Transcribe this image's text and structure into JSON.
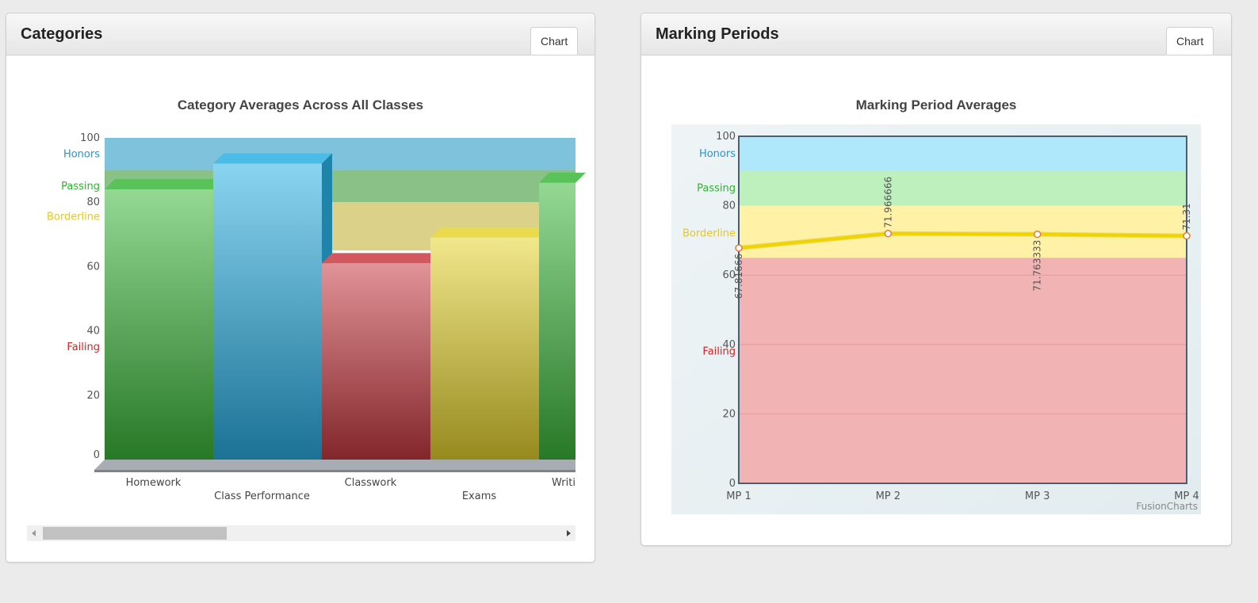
{
  "panels": {
    "categories": {
      "title": "Categories",
      "tab_label": "Chart"
    },
    "marking_periods": {
      "title": "Marking Periods",
      "tab_label": "Chart"
    }
  },
  "chart_data": [
    {
      "type": "bar",
      "title": "Category Averages Across All Classes",
      "categories": [
        "Homework",
        "Class Performance",
        "Classwork",
        "Exams",
        "Writi"
      ],
      "values": [
        84,
        92,
        61,
        69,
        86
      ],
      "colors": [
        "#3cb83c",
        "#2ab0e3",
        "#c83a42",
        "#e6d42e",
        "#3cb83c"
      ],
      "ylim": [
        0,
        100
      ],
      "yticks": [
        0,
        20,
        40,
        60,
        80,
        100
      ],
      "bands": [
        {
          "label": "Honors",
          "from": 90,
          "to": 100,
          "color": "#3ba1c8",
          "label_color": "#1a9ad6"
        },
        {
          "label": "Passing",
          "from": 80,
          "to": 90,
          "color": "#4a9f45",
          "label_color": "#2fb32f"
        },
        {
          "label": "Borderline",
          "from": 65,
          "to": 80,
          "color": "#c8b84a",
          "label_color": "#e8c81a"
        },
        {
          "label": "Failing",
          "from": 0,
          "to": 65,
          "color": "#ffffff",
          "label_color": "#c82828"
        }
      ],
      "grid": false,
      "scrollbar": true
    },
    {
      "type": "line",
      "title": "Marking Period Averages",
      "x": [
        "MP 1",
        "MP 2",
        "MP 3",
        "MP 4"
      ],
      "series": [
        {
          "values": [
            67.81666,
            71.966666,
            71.763333,
            71.31
          ],
          "labels": [
            "67.81666",
            "71.966666",
            "71.763333",
            "71.31"
          ],
          "color": "#f0d400"
        }
      ],
      "ylim": [
        0,
        100
      ],
      "yticks": [
        0,
        20,
        40,
        60,
        80,
        100
      ],
      "bands": [
        {
          "label": "Honors",
          "from": 90,
          "to": 100,
          "color": "#b0e8fb",
          "label_color": "#1a9ad6"
        },
        {
          "label": "Passing",
          "from": 80,
          "to": 90,
          "color": "#bdf0bd",
          "label_color": "#2fb32f"
        },
        {
          "label": "Borderline",
          "from": 65,
          "to": 80,
          "color": "#fff2a6",
          "label_color": "#e8c81a"
        },
        {
          "label": "Failing",
          "from": 0,
          "to": 65,
          "color": "#f1b3b3",
          "label_color": "#c82828"
        }
      ],
      "grid": true,
      "credit": "FusionCharts"
    }
  ]
}
